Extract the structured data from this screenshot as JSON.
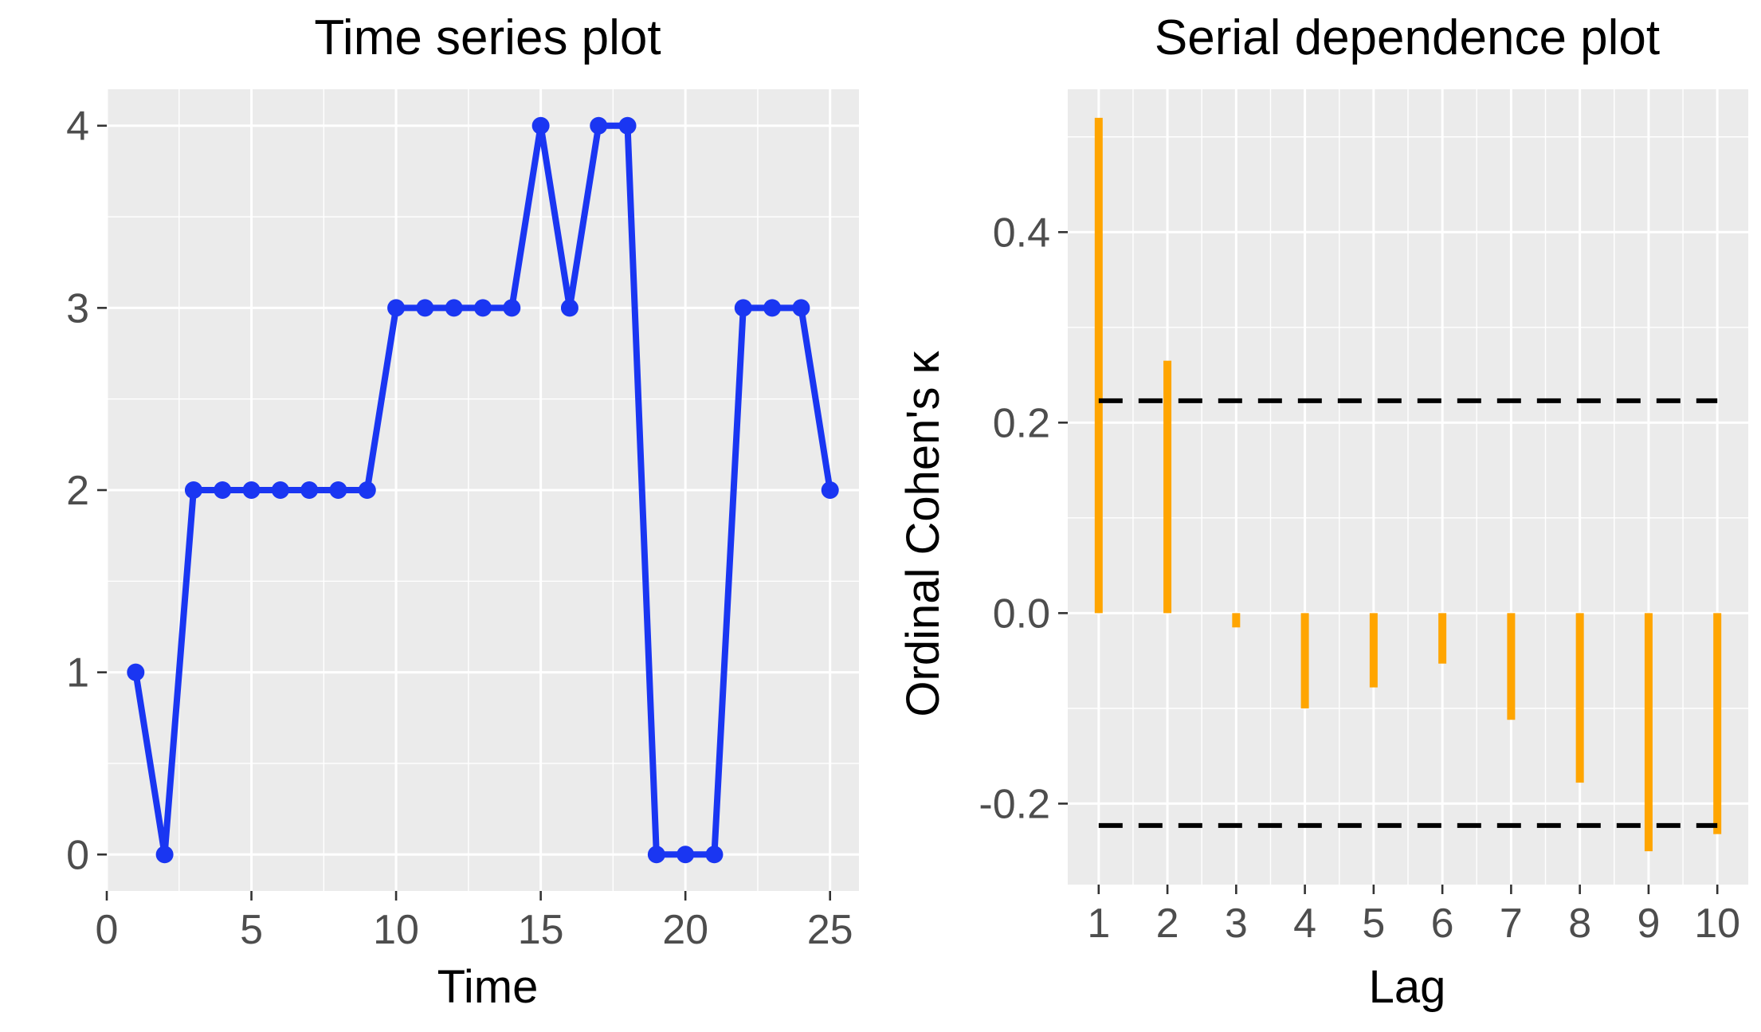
{
  "chart_data": [
    {
      "type": "line",
      "title": "Time series plot",
      "xlabel": "Time",
      "ylabel": "",
      "xlim": [
        0,
        26
      ],
      "ylim": [
        -0.2,
        4.2
      ],
      "xticks": [
        0,
        5,
        10,
        15,
        20,
        25
      ],
      "yticks": [
        0,
        1,
        2,
        3,
        4
      ],
      "grid": true,
      "colors": {
        "line": "#1a36f2",
        "panel": "#ebebeb",
        "grid": "#ffffff"
      },
      "series": [
        {
          "x": [
            1,
            2,
            3,
            4,
            5,
            6,
            7,
            8,
            9,
            10,
            11,
            12,
            13,
            14,
            15,
            16,
            17,
            18,
            19,
            20,
            21,
            22,
            23,
            24,
            25
          ],
          "y": [
            1,
            0,
            2,
            2,
            2,
            2,
            2,
            2,
            2,
            3,
            3,
            3,
            3,
            3,
            4,
            3,
            4,
            4,
            0,
            0,
            0,
            3,
            3,
            3,
            2
          ]
        }
      ]
    },
    {
      "type": "bar",
      "title": "Serial dependence plot",
      "xlabel": "Lag",
      "ylabel": "Ordinal Cohen's κ",
      "xlim": [
        0.55,
        10.45
      ],
      "ylim": [
        -0.285,
        0.55
      ],
      "categories": [
        "1",
        "2",
        "3",
        "4",
        "5",
        "6",
        "7",
        "8",
        "9",
        "10"
      ],
      "values": [
        0.52,
        0.265,
        -0.015,
        -0.1,
        -0.078,
        -0.053,
        -0.112,
        -0.178,
        -0.25,
        -0.232
      ],
      "yticks": [
        -0.2,
        0.0,
        0.2,
        0.4
      ],
      "ytick_labels": [
        "-0.2",
        "0.0",
        "0.2",
        "0.4"
      ],
      "reference_lines": [
        0.223,
        -0.223
      ],
      "grid": true,
      "colors": {
        "bar": "#ffa500",
        "reference": "#000000",
        "panel": "#ebebeb",
        "grid": "#ffffff"
      }
    }
  ]
}
